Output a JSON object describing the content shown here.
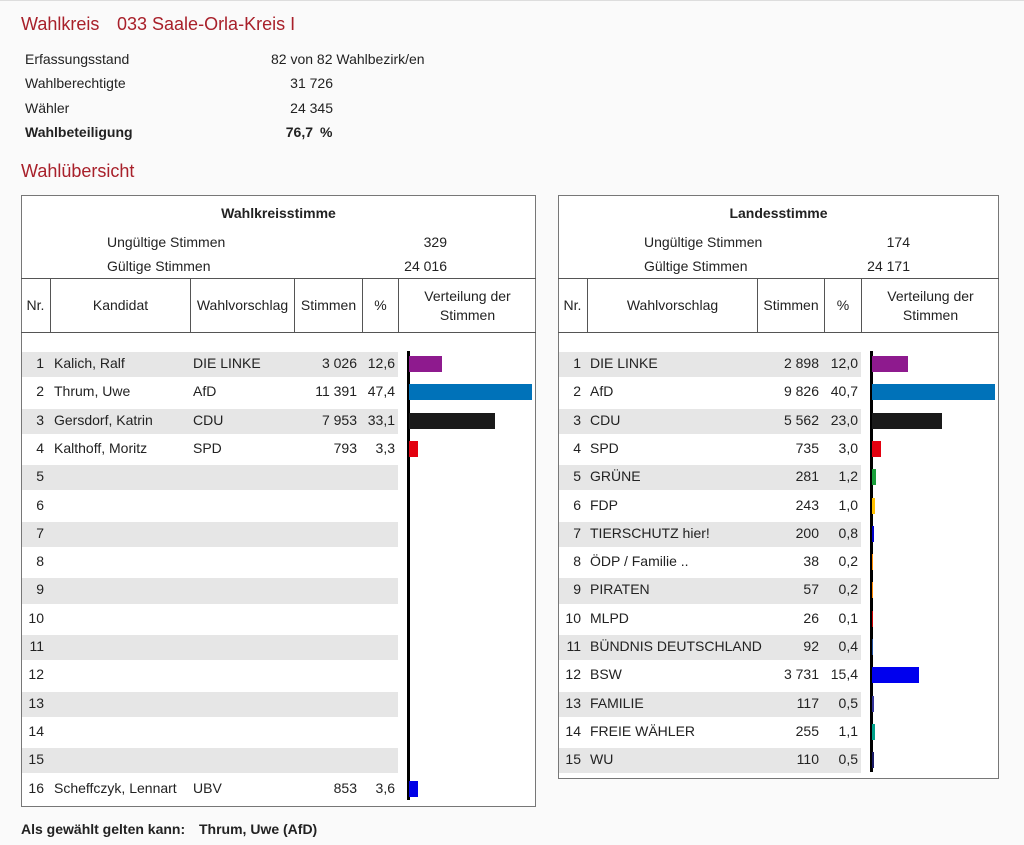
{
  "header": {
    "label": "Wahlkreis",
    "name": "033 Saale-Orla-Kreis I"
  },
  "summary": [
    {
      "label": "Erfassungsstand",
      "value": "82 von 82 Wahlbezirk/en"
    },
    {
      "label": "Wahlberechtigte",
      "value": "31 726"
    },
    {
      "label": "Wähler",
      "value": "24 345"
    },
    {
      "label": "Wahlbeteiligung",
      "value": "76,7",
      "unit": "%",
      "bold": true
    }
  ],
  "section_title": "Wahlübersicht",
  "tables": [
    {
      "title": "Wahlkreisstimme",
      "info": [
        {
          "label": "Ungültige Stimmen",
          "value": "329"
        },
        {
          "label": "Gültige Stimmen",
          "value": "24 016"
        }
      ],
      "columns": [
        "Nr.",
        "Kandidat",
        "Wahlvorschlag",
        "Stimmen",
        "%",
        "Verteilung der Stimmen"
      ],
      "rows": [
        {
          "nr": "1",
          "kandidat": "Kalich, Ralf",
          "partei": "DIE LINKE",
          "stimmen": "3 026",
          "pct": "12,6",
          "color": "#8e1a8e"
        },
        {
          "nr": "2",
          "kandidat": "Thrum, Uwe",
          "partei": "AfD",
          "stimmen": "11 391",
          "pct": "47,4",
          "color": "#0072b9"
        },
        {
          "nr": "3",
          "kandidat": "Gersdorf, Katrin",
          "partei": "CDU",
          "stimmen": "7 953",
          "pct": "33,1",
          "color": "#1a1a1a"
        },
        {
          "nr": "4",
          "kandidat": "Kalthoff, Moritz",
          "partei": "SPD",
          "stimmen": "793",
          "pct": "3,3",
          "color": "#e3000f"
        },
        {
          "nr": "5"
        },
        {
          "nr": "6"
        },
        {
          "nr": "7"
        },
        {
          "nr": "8"
        },
        {
          "nr": "9"
        },
        {
          "nr": "10"
        },
        {
          "nr": "11"
        },
        {
          "nr": "12"
        },
        {
          "nr": "13"
        },
        {
          "nr": "14"
        },
        {
          "nr": "15"
        },
        {
          "nr": "16",
          "kandidat": "Scheffczyk, Lennart",
          "partei": "UBV",
          "stimmen": "853",
          "pct": "3,6",
          "color": "#0000e6"
        }
      ]
    },
    {
      "title": "Landesstimme",
      "info": [
        {
          "label": "Ungültige Stimmen",
          "value": "174"
        },
        {
          "label": "Gültige Stimmen",
          "value": "24 171"
        }
      ],
      "columns": [
        "Nr.",
        "Wahlvorschlag",
        "Stimmen",
        "%",
        "Verteilung der Stimmen"
      ],
      "rows": [
        {
          "nr": "1",
          "partei": "DIE LINKE",
          "stimmen": "2 898",
          "pct": "12,0",
          "color": "#8e1a8e"
        },
        {
          "nr": "2",
          "partei": "AfD",
          "stimmen": "9 826",
          "pct": "40,7",
          "color": "#0072b9"
        },
        {
          "nr": "3",
          "partei": "CDU",
          "stimmen": "5 562",
          "pct": "23,0",
          "color": "#1a1a1a"
        },
        {
          "nr": "4",
          "partei": "SPD",
          "stimmen": "735",
          "pct": "3,0",
          "color": "#e3000f"
        },
        {
          "nr": "5",
          "partei": "GRÜNE",
          "stimmen": "281",
          "pct": "1,2",
          "color": "#1a9e3a"
        },
        {
          "nr": "6",
          "partei": "FDP",
          "stimmen": "243",
          "pct": "1,0",
          "color": "#ffc000"
        },
        {
          "nr": "7",
          "partei": "TIERSCHUTZ hier!",
          "stimmen": "200",
          "pct": "0,8",
          "color": "#0000cc"
        },
        {
          "nr": "8",
          "partei": "ÖDP / Familie ..",
          "stimmen": "38",
          "pct": "0,2",
          "color": "#ff8c00"
        },
        {
          "nr": "9",
          "partei": "PIRATEN",
          "stimmen": "57",
          "pct": "0,2",
          "color": "#ff8800"
        },
        {
          "nr": "10",
          "partei": "MLPD",
          "stimmen": "26",
          "pct": "0,1",
          "color": "#cc0000"
        },
        {
          "nr": "11",
          "partei": "BÜNDNIS DEUTSCHLAND",
          "stimmen": "92",
          "pct": "0,4",
          "color": "#1f4e9c"
        },
        {
          "nr": "12",
          "partei": "BSW",
          "stimmen": "3 731",
          "pct": "15,4",
          "color": "#0000ee"
        },
        {
          "nr": "13",
          "partei": "FAMILIE",
          "stimmen": "117",
          "pct": "0,5",
          "color": "#333399"
        },
        {
          "nr": "14",
          "partei": "FREIE WÄHLER",
          "stimmen": "255",
          "pct": "1,1",
          "color": "#00a08a"
        },
        {
          "nr": "15",
          "partei": "WU",
          "stimmen": "110",
          "pct": "0,5",
          "color": "#1a1a66"
        }
      ]
    }
  ],
  "elected": {
    "label": "Als gewählt gelten kann:",
    "value": "Thrum, Uwe (AfD)"
  }
}
